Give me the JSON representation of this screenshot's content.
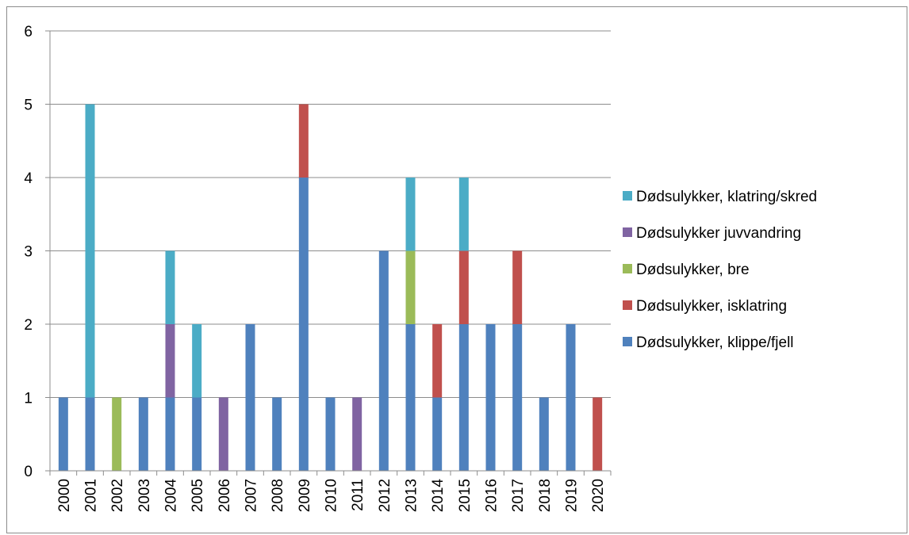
{
  "chart_data": {
    "type": "bar",
    "stacked": true,
    "title": "",
    "xlabel": "",
    "ylabel": "",
    "ylim": [
      0,
      6
    ],
    "yticks": [
      0,
      1,
      2,
      3,
      4,
      5,
      6
    ],
    "grid": true,
    "legend_position": "right",
    "categories": [
      "2000",
      "2001",
      "2002",
      "2003",
      "2004",
      "2005",
      "2006",
      "2007",
      "2008",
      "2009",
      "2010",
      "2011",
      "2012",
      "2013",
      "2014",
      "2015",
      "2016",
      "2017",
      "2018",
      "2019",
      "2020"
    ],
    "series": [
      {
        "name": "Dødsulykker, klippe/fjell",
        "color": "#4f81bd",
        "values": [
          1,
          1,
          0,
          1,
          1,
          1,
          0,
          2,
          1,
          4,
          1,
          0,
          3,
          2,
          1,
          2,
          2,
          2,
          1,
          2,
          0
        ]
      },
      {
        "name": "Dødsulykker, isklatring",
        "color": "#c0504d",
        "values": [
          0,
          0,
          0,
          0,
          0,
          0,
          0,
          0,
          0,
          1,
          0,
          0,
          0,
          0,
          1,
          1,
          0,
          1,
          0,
          0,
          1
        ]
      },
      {
        "name": "Dødsulykker, bre",
        "color": "#9bbb59",
        "values": [
          0,
          0,
          1,
          0,
          0,
          0,
          0,
          0,
          0,
          0,
          0,
          0,
          0,
          1,
          0,
          0,
          0,
          0,
          0,
          0,
          0
        ]
      },
      {
        "name": "Dødsulykker juvvandring",
        "color": "#8064a2",
        "values": [
          0,
          0,
          0,
          0,
          1,
          0,
          1,
          0,
          0,
          0,
          0,
          1,
          0,
          0,
          0,
          0,
          0,
          0,
          0,
          0,
          0
        ]
      },
      {
        "name": "Dødsulykker, klatring/skred",
        "color": "#4bacc6",
        "values": [
          0,
          4,
          0,
          0,
          1,
          1,
          0,
          0,
          0,
          0,
          0,
          0,
          0,
          1,
          0,
          1,
          0,
          0,
          0,
          0,
          0
        ]
      }
    ],
    "legend_order": [
      4,
      3,
      2,
      1,
      0
    ]
  }
}
